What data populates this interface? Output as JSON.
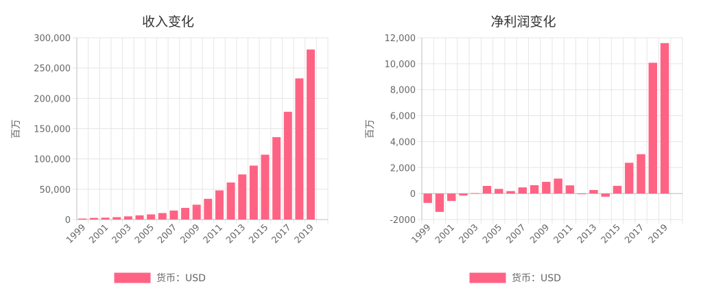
{
  "chart_data": [
    {
      "type": "bar",
      "title": "收入变化",
      "ylabel": "百万",
      "xlabel": "",
      "ylim": [
        0,
        300000
      ],
      "yticks": [
        0,
        50000,
        100000,
        150000,
        200000,
        250000,
        300000
      ],
      "ytick_labels": [
        "0",
        "50,000",
        "100,000",
        "150,000",
        "200,000",
        "250,000",
        "300,000"
      ],
      "categories": [
        "1999",
        "2000",
        "2001",
        "2002",
        "2003",
        "2004",
        "2005",
        "2006",
        "2007",
        "2008",
        "2009",
        "2010",
        "2011",
        "2012",
        "2013",
        "2014",
        "2015",
        "2016",
        "2017",
        "2018",
        "2019",
        "2020"
      ],
      "xtick_labels": [
        "1999",
        "2001",
        "2003",
        "2005",
        "2007",
        "2009",
        "2011",
        "2013",
        "2015",
        "2017",
        "2019"
      ],
      "series": [
        {
          "name": "货币：USD",
          "values": [
            1600,
            2760,
            3120,
            3930,
            5260,
            6920,
            8490,
            10710,
            14840,
            19170,
            24510,
            34200,
            48080,
            61090,
            74450,
            88990,
            107010,
            135990,
            177870,
            232890,
            280520,
            0
          ]
        }
      ],
      "color": "#ff6384",
      "grid": true,
      "legend": "bottom"
    },
    {
      "type": "bar",
      "title": "净利润变化",
      "ylabel": "百万",
      "xlabel": "",
      "ylim": [
        -2000,
        12000
      ],
      "yticks": [
        -2000,
        0,
        2000,
        4000,
        6000,
        8000,
        10000,
        12000
      ],
      "ytick_labels": [
        "-2000",
        "0",
        "2,000",
        "4,000",
        "6,000",
        "8,000",
        "10,000",
        "12,000"
      ],
      "categories": [
        "1999",
        "2000",
        "2001",
        "2002",
        "2003",
        "2004",
        "2005",
        "2006",
        "2007",
        "2008",
        "2009",
        "2010",
        "2011",
        "2012",
        "2013",
        "2014",
        "2015",
        "2016",
        "2017",
        "2018",
        "2019",
        "2020"
      ],
      "xtick_labels": [
        "1999",
        "2001",
        "2003",
        "2005",
        "2007",
        "2009",
        "2011",
        "2013",
        "2015",
        "2017",
        "2019"
      ],
      "series": [
        {
          "name": "货币：USD",
          "values": [
            -720,
            -1410,
            -567,
            -149,
            35,
            588,
            359,
            190,
            476,
            645,
            902,
            1152,
            631,
            -39,
            274,
            -241,
            596,
            2371,
            3033,
            10073,
            11588,
            0
          ]
        }
      ],
      "color": "#ff6384",
      "grid": true,
      "legend": "bottom"
    }
  ]
}
